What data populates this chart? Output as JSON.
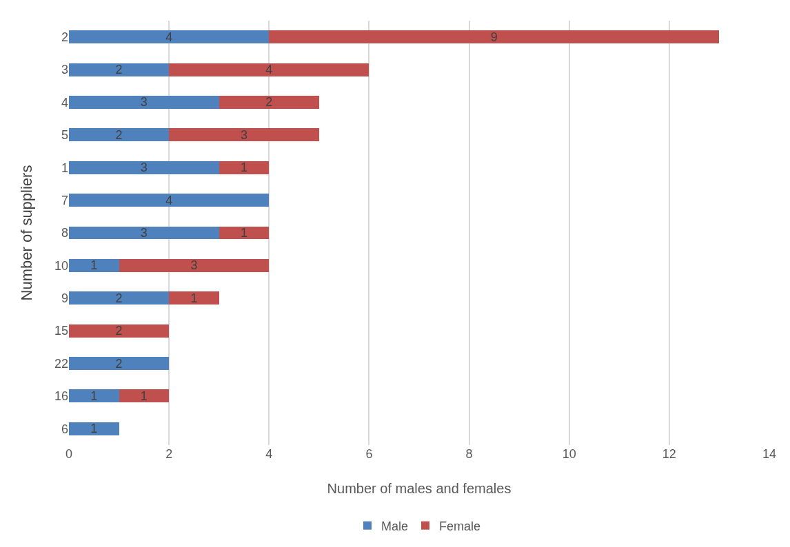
{
  "chart_data": {
    "type": "bar",
    "orientation": "horizontal",
    "stacked": true,
    "xlabel": "Number of males and females",
    "ylabel": "Number of suppliers",
    "categories": [
      "2",
      "3",
      "4",
      "5",
      "1",
      "7",
      "8",
      "10",
      "9",
      "15",
      "22",
      "16",
      "6"
    ],
    "series": [
      {
        "name": "Male",
        "color": "#4f81bd",
        "values": [
          4,
          2,
          3,
          2,
          3,
          4,
          3,
          1,
          2,
          null,
          2,
          1,
          1
        ]
      },
      {
        "name": "Female",
        "color": "#c0504d",
        "values": [
          9,
          4,
          2,
          3,
          1,
          null,
          1,
          3,
          1,
          2,
          null,
          1,
          null
        ]
      }
    ],
    "xlim": [
      0,
      14
    ],
    "xticks": [
      0,
      2,
      4,
      6,
      8,
      10,
      12,
      14
    ],
    "grid": "x",
    "legend": "bottom",
    "data_labels": true
  }
}
